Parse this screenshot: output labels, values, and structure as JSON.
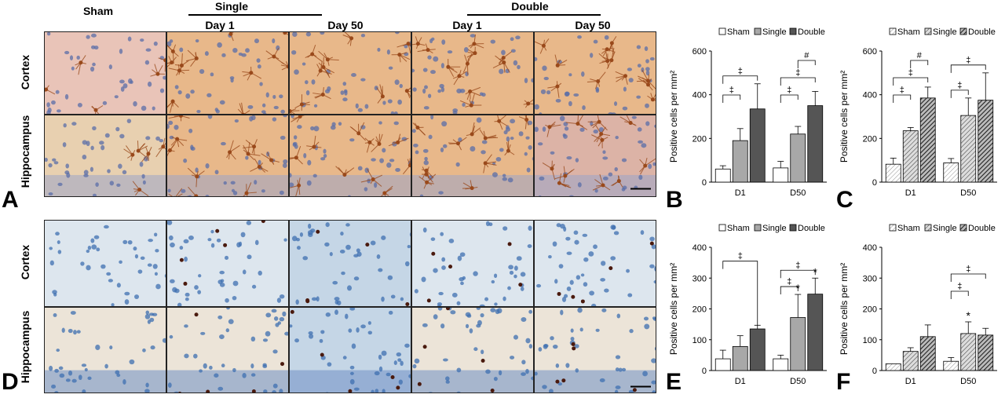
{
  "figure": {
    "column_headers": {
      "sham": "Sham",
      "single": "Single",
      "double": "Double",
      "day1_single": "Day 1",
      "day50_single": "Day 50",
      "day1_double": "Day 1",
      "day50_double": "Day 50"
    },
    "row_labels": {
      "top_cortex": "Cortex",
      "top_hippocampus": "Hippocampus",
      "bottom_cortex": "Cortex",
      "bottom_hippocampus": "Hippocampus"
    },
    "panel_letters": {
      "a": "A",
      "b": "B",
      "c": "C",
      "d": "D",
      "e": "E",
      "f": "F"
    },
    "colors": {
      "gfap_tissue": "#e8b88a",
      "gfap_stain": "#9a4a1c",
      "nucleus": "#5a6ea8",
      "iba_bg": "#dde6ee",
      "iba_blue": "#3d6fb0",
      "iba_stain": "#4a1a0e",
      "bar_sham": "#ffffff",
      "bar_single": "#a8a8a8",
      "bar_double": "#555555"
    }
  },
  "chart_data": [
    {
      "panel": "B",
      "type": "bar",
      "categories": [
        "D1",
        "D50"
      ],
      "legend": [
        "Sham",
        "Single",
        "Double"
      ],
      "ylabel": "Positive cells per mm²",
      "ylim": [
        0,
        600
      ],
      "yticks": [
        "0",
        "200",
        "400",
        "600"
      ],
      "series": [
        {
          "name": "Sham",
          "values": [
            60,
            65
          ],
          "errors": [
            15,
            30
          ]
        },
        {
          "name": "Single",
          "values": [
            190,
            220
          ],
          "errors": [
            55,
            35
          ]
        },
        {
          "name": "Double",
          "values": [
            335,
            350
          ],
          "errors": [
            115,
            65
          ]
        }
      ],
      "significance": [
        {
          "category": "D1",
          "from": 0,
          "to": 1,
          "label": "‡",
          "level": 1
        },
        {
          "category": "D1",
          "from": 0,
          "to": 2,
          "label": "‡",
          "level": 2
        },
        {
          "category": "D50",
          "from": 0,
          "to": 1,
          "label": "‡",
          "level": 1
        },
        {
          "category": "D50",
          "from": 0,
          "to": 2,
          "label": "‡",
          "level": 2
        },
        {
          "category": "D50",
          "from": 1,
          "to": 2,
          "label": "#",
          "level": 3
        }
      ],
      "style": "solid"
    },
    {
      "panel": "C",
      "type": "bar",
      "categories": [
        "D1",
        "D50"
      ],
      "legend": [
        "Sham",
        "Single",
        "Double"
      ],
      "ylabel": "Positive cells per mm²",
      "ylim": [
        0,
        600
      ],
      "yticks": [
        "0",
        "200",
        "400",
        "600"
      ],
      "series": [
        {
          "name": "Sham",
          "values": [
            82,
            88
          ],
          "errors": [
            28,
            20
          ]
        },
        {
          "name": "Single",
          "values": [
            235,
            305
          ],
          "errors": [
            15,
            80
          ]
        },
        {
          "name": "Double",
          "values": [
            385,
            375
          ],
          "errors": [
            50,
            125
          ]
        }
      ],
      "significance": [
        {
          "category": "D1",
          "from": 0,
          "to": 1,
          "label": "‡",
          "level": 1
        },
        {
          "category": "D1",
          "from": 0,
          "to": 2,
          "label": "‡",
          "level": 2
        },
        {
          "category": "D1",
          "from": 1,
          "to": 2,
          "label": "#",
          "level": 3
        },
        {
          "category": "D50",
          "from": 0,
          "to": 1,
          "label": "‡",
          "level": 1
        },
        {
          "category": "D50",
          "from": 0,
          "to": 2,
          "label": "‡",
          "level": 2
        }
      ],
      "style": "hatched"
    },
    {
      "panel": "E",
      "type": "bar",
      "categories": [
        "D1",
        "D50"
      ],
      "legend": [
        "Sham",
        "Single",
        "Double"
      ],
      "ylabel": "Positive cells per mm²",
      "ylim": [
        0,
        400
      ],
      "yticks": [
        "0",
        "100",
        "200",
        "300",
        "400"
      ],
      "series": [
        {
          "name": "Sham",
          "values": [
            38,
            38
          ],
          "errors": [
            28,
            12
          ]
        },
        {
          "name": "Single",
          "values": [
            78,
            172
          ],
          "errors": [
            35,
            75
          ]
        },
        {
          "name": "Double",
          "values": [
            135,
            248
          ],
          "errors": [
            12,
            52
          ]
        }
      ],
      "stars": [
        {
          "category": "D50",
          "series": 1,
          "label": "*"
        },
        {
          "category": "D50",
          "series": 2,
          "label": "*"
        }
      ],
      "significance": [
        {
          "category": "D1",
          "from": 0,
          "to": 2,
          "label": "‡",
          "level": 2,
          "fixed_top": 355
        },
        {
          "category": "D50",
          "from": 0,
          "to": 1,
          "label": "‡",
          "level": 1
        },
        {
          "category": "D50",
          "from": 0,
          "to": 2,
          "label": "‡",
          "level": 2
        }
      ],
      "style": "solid"
    },
    {
      "panel": "F",
      "type": "bar",
      "categories": [
        "D1",
        "D50"
      ],
      "legend": [
        "Sham",
        "Single",
        "Double"
      ],
      "ylabel": "Positive cells per mm²",
      "ylim": [
        0,
        400
      ],
      "yticks": [
        "0",
        "100",
        "200",
        "300",
        "400"
      ],
      "series": [
        {
          "name": "Sham",
          "values": [
            22,
            30
          ],
          "errors": [
            0,
            12
          ]
        },
        {
          "name": "Single",
          "values": [
            62,
            120
          ],
          "errors": [
            12,
            38
          ]
        },
        {
          "name": "Double",
          "values": [
            110,
            115
          ],
          "errors": [
            38,
            22
          ]
        }
      ],
      "stars": [
        {
          "category": "D50",
          "series": 1,
          "label": "*"
        }
      ],
      "significance": [
        {
          "category": "D50",
          "from": 0,
          "to": 1,
          "label": "‡",
          "level": 1
        },
        {
          "category": "D50",
          "from": 0,
          "to": 2,
          "label": "‡",
          "level": 2
        }
      ],
      "style": "hatched"
    }
  ]
}
